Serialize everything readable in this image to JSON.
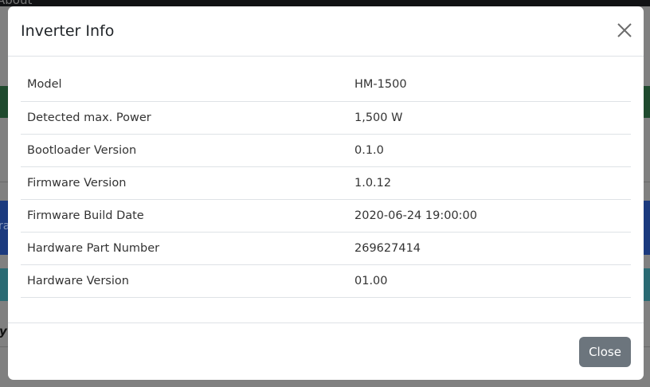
{
  "background": {
    "nav_text": "About",
    "side_letter_1": "ra",
    "side_letter_2": "y"
  },
  "modal": {
    "title": "Inverter Info",
    "close_label": "Close",
    "rows": [
      {
        "label": "Model",
        "value": "HM-1500"
      },
      {
        "label": "Detected max. Power",
        "value": "1,500 W"
      },
      {
        "label": "Bootloader Version",
        "value": "0.1.0"
      },
      {
        "label": "Firmware Version",
        "value": "1.0.12"
      },
      {
        "label": "Firmware Build Date",
        "value": "2020-06-24 19:00:00"
      },
      {
        "label": "Hardware Part Number",
        "value": "269627414"
      },
      {
        "label": "Hardware Version",
        "value": "01.00"
      }
    ]
  },
  "colors": {
    "green": "#1f4a2e",
    "blue": "#1b3a7e",
    "teal": "#2a6a73",
    "button": "#6c757d"
  }
}
